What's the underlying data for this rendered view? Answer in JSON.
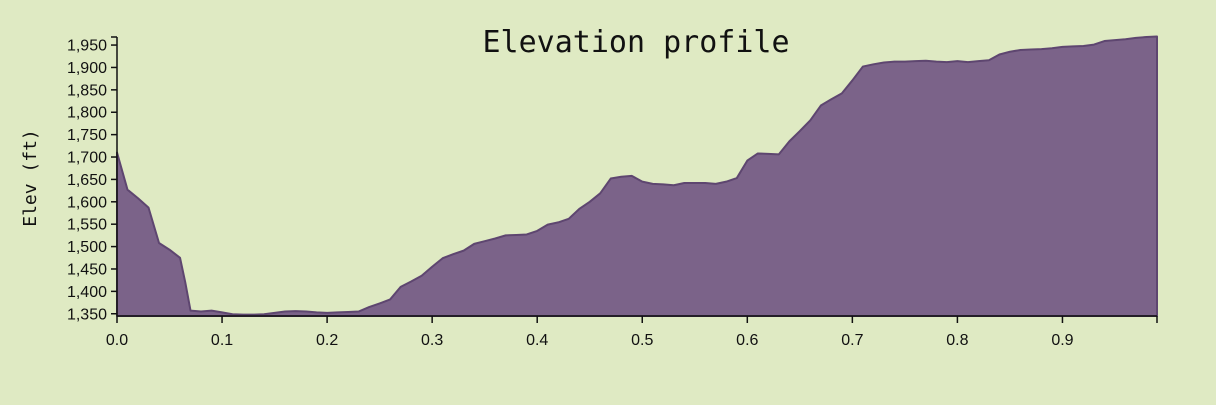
{
  "chart_data": {
    "type": "area",
    "title": "Elevation profile",
    "xlabel": "",
    "ylabel": "Elev (ft)",
    "xlim": [
      0,
      0.99
    ],
    "ylim": [
      1345,
      1968
    ],
    "x_ticks": [
      0.0,
      0.1,
      0.2,
      0.3,
      0.4,
      0.5,
      0.6,
      0.7,
      0.8,
      0.9
    ],
    "x_tick_labels": [
      "0.0",
      "0.1",
      "0.2",
      "0.3",
      "0.4",
      "0.5",
      "0.6",
      "0.7",
      "0.8",
      "0.9"
    ],
    "y_ticks": [
      1350,
      1400,
      1450,
      1500,
      1550,
      1600,
      1650,
      1700,
      1750,
      1800,
      1850,
      1900,
      1950
    ],
    "y_tick_labels": [
      "1,350",
      "1,400",
      "1,450",
      "1,500",
      "1,550",
      "1,600",
      "1,650",
      "1,700",
      "1,750",
      "1,800",
      "1,850",
      "1,900",
      "1,950"
    ],
    "grid": false,
    "legend": "none",
    "fill_color": "#7b6389",
    "stroke_color": "#5e4670",
    "background_color": "#dfeac3",
    "series": [
      {
        "x": [
          0.0,
          0.01,
          0.02,
          0.03,
          0.04,
          0.05,
          0.06,
          0.065,
          0.07,
          0.08,
          0.09,
          0.1,
          0.11,
          0.12,
          0.13,
          0.14,
          0.15,
          0.16,
          0.17,
          0.18,
          0.19,
          0.2,
          0.21,
          0.22,
          0.23,
          0.24,
          0.25,
          0.26,
          0.27,
          0.28,
          0.29,
          0.3,
          0.31,
          0.32,
          0.33,
          0.34,
          0.35,
          0.36,
          0.37,
          0.38,
          0.39,
          0.4,
          0.41,
          0.42,
          0.43,
          0.44,
          0.45,
          0.46,
          0.47,
          0.48,
          0.49,
          0.5,
          0.51,
          0.52,
          0.53,
          0.54,
          0.55,
          0.56,
          0.57,
          0.58,
          0.59,
          0.6,
          0.61,
          0.62,
          0.63,
          0.64,
          0.65,
          0.66,
          0.67,
          0.68,
          0.69,
          0.7,
          0.71,
          0.72,
          0.73,
          0.74,
          0.75,
          0.76,
          0.77,
          0.78,
          0.79,
          0.8,
          0.81,
          0.82,
          0.83,
          0.84,
          0.85,
          0.86,
          0.87,
          0.88,
          0.89,
          0.9,
          0.91,
          0.92,
          0.93,
          0.94,
          0.95,
          0.96,
          0.97,
          0.98,
          0.99
        ],
        "values": [
          1710,
          1627,
          1608,
          1587,
          1508,
          1493,
          1475,
          1420,
          1357,
          1355,
          1357,
          1353,
          1349,
          1348,
          1348,
          1349,
          1352,
          1355,
          1356,
          1355,
          1353,
          1352,
          1353,
          1354,
          1355,
          1365,
          1373,
          1382,
          1410,
          1422,
          1435,
          1455,
          1474,
          1483,
          1491,
          1506,
          1512,
          1518,
          1525,
          1526,
          1527,
          1535,
          1549,
          1554,
          1562,
          1584,
          1600,
          1619,
          1652,
          1656,
          1658,
          1645,
          1640,
          1639,
          1637,
          1642,
          1642,
          1642,
          1640,
          1645,
          1653,
          1692,
          1708,
          1707,
          1706,
          1735,
          1758,
          1782,
          1815,
          1829,
          1842,
          1871,
          1902,
          1907,
          1911,
          1913,
          1913,
          1914,
          1915,
          1913,
          1912,
          1914,
          1912,
          1914,
          1916,
          1929,
          1935,
          1939,
          1940,
          1941,
          1943,
          1946,
          1947,
          1948,
          1951,
          1959,
          1961,
          1963,
          1966,
          1968,
          1969
        ]
      }
    ]
  }
}
